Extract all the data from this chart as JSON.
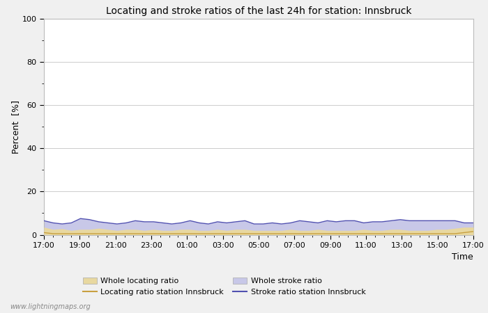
{
  "title": "Locating and stroke ratios of the last 24h for station: Innsbruck",
  "xlabel": "Time",
  "ylabel": "Percent  [%]",
  "xlim": [
    0,
    48
  ],
  "ylim": [
    0,
    100
  ],
  "yticks": [
    0,
    20,
    40,
    60,
    80,
    100
  ],
  "ytick_minor": [
    10,
    30,
    50,
    70,
    90
  ],
  "xtick_labels": [
    "17:00",
    "19:00",
    "21:00",
    "23:00",
    "01:00",
    "03:00",
    "05:00",
    "07:00",
    "09:00",
    "11:00",
    "13:00",
    "15:00",
    "17:00"
  ],
  "background_color": "#f0f0f0",
  "plot_bg_color": "#ffffff",
  "grid_color": "#cccccc",
  "title_fontsize": 10,
  "watermark": "www.lightningmaps.org",
  "whole_locating_color": "#e8d8a0",
  "whole_stroke_color": "#c8c8e8",
  "locating_line_color": "#c8a040",
  "stroke_line_color": "#5050b0",
  "whole_locating_values": [
    3.5,
    2.5,
    2.8,
    2.0,
    2.5,
    2.5,
    3.0,
    2.5,
    2.0,
    2.5,
    2.5,
    2.0,
    2.5,
    2.0,
    2.0,
    2.5,
    2.5,
    2.0,
    2.0,
    2.5,
    2.0,
    2.5,
    2.5,
    2.0,
    2.0,
    2.0,
    2.0,
    2.5,
    2.0,
    2.0,
    2.5,
    2.0,
    2.0,
    2.0,
    2.0,
    2.5,
    2.0,
    2.0,
    2.5,
    2.5,
    2.0,
    2.0,
    2.0,
    2.5,
    2.5,
    3.0,
    3.5,
    3.5
  ],
  "whole_stroke_values": [
    6.5,
    5.5,
    5.0,
    5.5,
    7.5,
    7.0,
    6.0,
    5.5,
    5.0,
    5.5,
    6.5,
    6.0,
    6.0,
    5.5,
    5.0,
    5.5,
    6.5,
    5.5,
    5.0,
    6.0,
    5.5,
    6.0,
    6.5,
    5.0,
    5.0,
    5.5,
    5.0,
    5.5,
    6.5,
    6.0,
    5.5,
    6.5,
    6.0,
    6.5,
    6.5,
    5.5,
    6.0,
    6.0,
    6.5,
    7.0,
    6.5,
    6.5,
    6.5,
    6.5,
    6.5,
    6.5,
    5.5,
    5.5
  ],
  "locating_line_values": [
    1.0,
    0.5,
    0.5,
    0.5,
    0.5,
    0.5,
    0.5,
    0.5,
    0.5,
    0.5,
    0.5,
    0.5,
    0.5,
    0.5,
    0.5,
    0.5,
    0.5,
    0.5,
    0.5,
    0.5,
    0.5,
    0.5,
    0.5,
    0.5,
    0.5,
    0.5,
    0.5,
    0.5,
    0.5,
    0.5,
    0.5,
    0.5,
    0.5,
    0.5,
    0.5,
    0.5,
    0.5,
    0.5,
    0.5,
    0.5,
    0.5,
    0.5,
    0.5,
    0.5,
    0.5,
    0.5,
    1.0,
    1.5
  ],
  "stroke_line_values": [
    6.5,
    5.5,
    5.0,
    5.5,
    7.5,
    7.0,
    6.0,
    5.5,
    5.0,
    5.5,
    6.5,
    6.0,
    6.0,
    5.5,
    5.0,
    5.5,
    6.5,
    5.5,
    5.0,
    6.0,
    5.5,
    6.0,
    6.5,
    5.0,
    5.0,
    5.5,
    5.0,
    5.5,
    6.5,
    6.0,
    5.5,
    6.5,
    6.0,
    6.5,
    6.5,
    5.5,
    6.0,
    6.0,
    6.5,
    7.0,
    6.5,
    6.5,
    6.5,
    6.5,
    6.5,
    6.5,
    5.5,
    5.5
  ],
  "legend_items": [
    {
      "type": "patch",
      "color": "#e8d8a0",
      "label": "Whole locating ratio"
    },
    {
      "type": "line",
      "color": "#c8a040",
      "label": "Locating ratio station Innsbruck"
    },
    {
      "type": "patch",
      "color": "#c8c8e8",
      "label": "Whole stroke ratio"
    },
    {
      "type": "line",
      "color": "#5050b0",
      "label": "Stroke ratio station Innsbruck"
    }
  ]
}
